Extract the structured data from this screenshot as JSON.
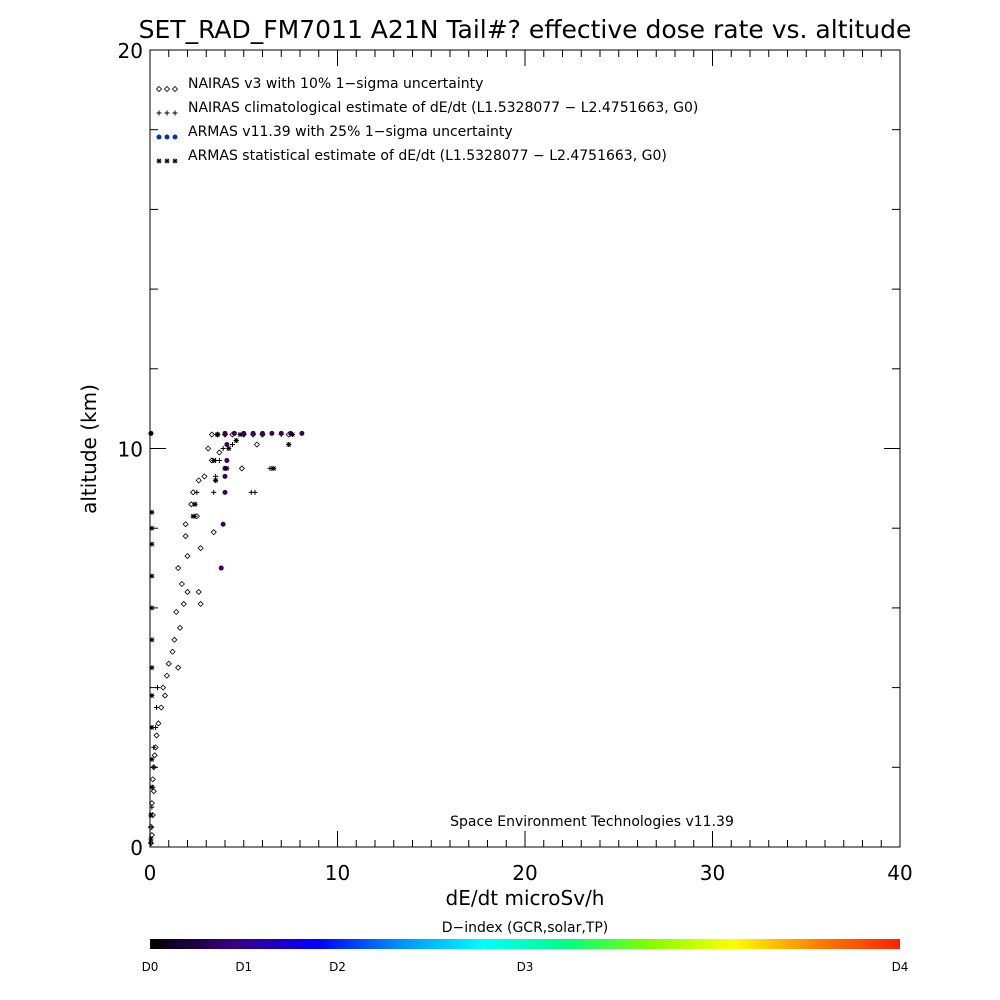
{
  "title": "SET_RAD_FM7011  A21N Tail#? effective dose rate vs. altitude",
  "footer_credit": "Space Environment Technologies v11.39",
  "colorbar": {
    "title": "D−index (GCR,solar,TP)",
    "labels": [
      {
        "text": "D0",
        "value": 0
      },
      {
        "text": "D1",
        "value": 5
      },
      {
        "text": "D2",
        "value": 10
      },
      {
        "text": "D3",
        "value": 20
      },
      {
        "text": "D4",
        "value": 40
      }
    ],
    "colors": [
      "#000000",
      "#3a0080",
      "#0000ff",
      "#0090ff",
      "#00ffff",
      "#00ff80",
      "#80ff00",
      "#ffff00",
      "#ff8000",
      "#ff2000"
    ]
  },
  "chart_data": {
    "type": "scatter",
    "xlabel": "dE/dt microSv/h",
    "ylabel": "altitude (km)",
    "xlim": [
      0,
      40
    ],
    "ylim": [
      0,
      20
    ],
    "xticks": [
      0,
      10,
      20,
      30,
      40
    ],
    "yticks": [
      0,
      10,
      20
    ],
    "legend_placement": "top-left",
    "series": [
      {
        "name": "NAIRAS v3 with 10% 1−sigma uncertainty",
        "marker": "diamond",
        "color": "#000000",
        "points": [
          [
            0.05,
            0.1
          ],
          [
            0.1,
            0.3
          ],
          [
            0.05,
            0.5
          ],
          [
            0.15,
            0.8
          ],
          [
            0.1,
            1.1
          ],
          [
            0.2,
            1.4
          ],
          [
            0.15,
            1.7
          ],
          [
            0.2,
            2.0
          ],
          [
            0.25,
            2.3
          ],
          [
            0.3,
            2.5
          ],
          [
            0.35,
            2.8
          ],
          [
            0.45,
            3.1
          ],
          [
            0.6,
            3.5
          ],
          [
            0.8,
            3.8
          ],
          [
            0.7,
            4.0
          ],
          [
            0.9,
            4.3
          ],
          [
            1.0,
            4.6
          ],
          [
            1.2,
            4.9
          ],
          [
            1.5,
            4.5
          ],
          [
            1.3,
            5.2
          ],
          [
            1.6,
            5.5
          ],
          [
            1.4,
            5.9
          ],
          [
            1.8,
            6.1
          ],
          [
            2.0,
            6.4
          ],
          [
            1.7,
            6.6
          ],
          [
            2.7,
            6.1
          ],
          [
            2.6,
            6.4
          ],
          [
            1.5,
            7.0
          ],
          [
            2.0,
            7.3
          ],
          [
            2.7,
            7.5
          ],
          [
            1.9,
            7.8
          ],
          [
            1.9,
            8.1
          ],
          [
            2.5,
            8.3
          ],
          [
            2.2,
            8.6
          ],
          [
            3.4,
            7.9
          ],
          [
            2.3,
            8.9
          ],
          [
            2.6,
            9.2
          ],
          [
            2.9,
            9.3
          ],
          [
            3.3,
            9.7
          ],
          [
            4.9,
            9.5
          ],
          [
            3.1,
            10.0
          ],
          [
            3.7,
            9.9
          ],
          [
            5.7,
            10.1
          ],
          [
            3.3,
            10.35
          ],
          [
            3.6,
            10.35
          ],
          [
            4.0,
            10.35
          ],
          [
            4.4,
            10.35
          ],
          [
            5.0,
            10.35
          ],
          [
            5.5,
            10.35
          ],
          [
            6.0,
            10.35
          ],
          [
            7.4,
            10.35
          ]
        ]
      },
      {
        "name": "NAIRAS climatological estimate of dE/dt (L1.5328077 − L2.4751663, G0)",
        "marker": "plus",
        "color": "#000000",
        "points": [
          [
            0.05,
            0.1
          ],
          [
            0.1,
            0.5
          ],
          [
            0.1,
            1.0
          ],
          [
            0.15,
            1.5
          ],
          [
            0.2,
            2.0
          ],
          [
            0.2,
            2.5
          ],
          [
            0.3,
            3.0
          ],
          [
            0.35,
            3.5
          ],
          [
            0.4,
            4.0
          ],
          [
            2.4,
            8.3
          ],
          [
            2.4,
            8.6
          ],
          [
            2.5,
            8.9
          ],
          [
            3.4,
            8.9
          ],
          [
            3.5,
            9.2
          ],
          [
            3.5,
            9.3
          ],
          [
            3.5,
            9.7
          ],
          [
            3.7,
            9.7
          ],
          [
            3.9,
            10.0
          ],
          [
            4.4,
            10.1
          ],
          [
            4.6,
            10.2
          ],
          [
            5.6,
            8.9
          ],
          [
            5.4,
            8.9
          ],
          [
            6.5,
            9.5
          ],
          [
            6.4,
            9.5
          ],
          [
            7.4,
            10.1
          ],
          [
            7.6,
            10.35
          ],
          [
            4.0,
            10.35
          ],
          [
            5.0,
            10.35
          ],
          [
            6.0,
            10.35
          ],
          [
            7.0,
            10.35
          ]
        ]
      },
      {
        "name": "ARMAS v11.39 with 25% 1−sigma uncertainty",
        "marker": "dot",
        "color": "#0033cc",
        "points": [
          [
            0.05,
            10.38
          ],
          [
            4.0,
            10.38
          ],
          [
            4.5,
            10.38
          ],
          [
            5.0,
            10.38
          ],
          [
            5.5,
            10.38
          ],
          [
            6.0,
            10.38
          ],
          [
            6.5,
            10.38
          ],
          [
            7.0,
            10.38
          ],
          [
            7.5,
            10.38
          ],
          [
            8.1,
            10.38
          ],
          [
            4.1,
            10.1
          ],
          [
            4.1,
            9.7
          ],
          [
            4.0,
            9.5
          ],
          [
            4.0,
            9.3
          ],
          [
            4.0,
            8.9
          ],
          [
            3.9,
            8.1
          ],
          [
            3.8,
            7.0
          ]
        ]
      },
      {
        "name": "ARMAS statistical estimate of dE/dt (L1.5328077 − L2.4751663, G0)",
        "marker": "asterisk",
        "color": "#000000",
        "points": [
          [
            0.05,
            0.2
          ],
          [
            0.05,
            0.8
          ],
          [
            0.1,
            1.5
          ],
          [
            0.1,
            2.2
          ],
          [
            0.1,
            3.0
          ],
          [
            0.1,
            3.8
          ],
          [
            0.1,
            4.5
          ],
          [
            0.1,
            5.2
          ],
          [
            0.1,
            6.0
          ],
          [
            0.1,
            6.8
          ],
          [
            0.1,
            7.6
          ],
          [
            0.1,
            8.0
          ],
          [
            0.1,
            8.4
          ],
          [
            2.3,
            8.3
          ],
          [
            2.4,
            8.6
          ],
          [
            3.5,
            9.2
          ],
          [
            3.4,
            9.7
          ],
          [
            4.1,
            9.5
          ],
          [
            4.2,
            10.0
          ],
          [
            4.6,
            10.2
          ],
          [
            6.6,
            9.5
          ],
          [
            7.4,
            10.1
          ],
          [
            7.6,
            10.35
          ],
          [
            3.6,
            10.35
          ],
          [
            4.8,
            10.35
          ]
        ]
      }
    ]
  }
}
